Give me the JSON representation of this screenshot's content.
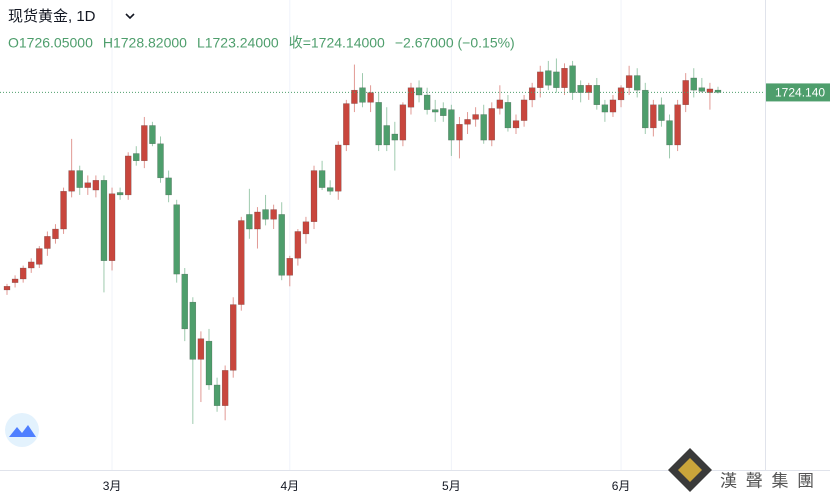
{
  "chart_data": {
    "type": "candlestick",
    "symbol_title": "现货黄金, 1D",
    "ohlc_legend": [
      "O1726.05000",
      "H1728.82000",
      "L1723.24000",
      "收=1724.14000",
      "−2.67000 (−0.15%)"
    ],
    "last_price_label": "1724.140",
    "watermark": "漢 聲 集 團",
    "up_color": "#c8463d",
    "down_color": "#4e9e6c",
    "ylim": [
      1406,
      1800
    ],
    "categories": [
      null,
      null,
      null,
      null,
      null,
      null,
      null,
      null,
      null,
      null,
      null,
      null,
      null,
      "3月",
      null,
      null,
      null,
      null,
      null,
      null,
      null,
      null,
      null,
      null,
      null,
      null,
      null,
      null,
      null,
      null,
      null,
      null,
      null,
      null,
      null,
      "4月",
      null,
      null,
      null,
      null,
      null,
      null,
      null,
      null,
      null,
      null,
      null,
      null,
      null,
      null,
      null,
      null,
      null,
      null,
      null,
      "5月",
      null,
      null,
      null,
      null,
      null,
      null,
      null,
      null,
      null,
      null,
      null,
      null,
      null,
      null,
      null,
      null,
      null,
      null,
      null,
      null,
      "6月",
      null,
      null,
      null,
      null,
      null,
      null,
      null,
      null,
      null,
      null,
      null,
      null
    ],
    "open": [
      1562,
      1568,
      1571,
      1580,
      1583,
      1596,
      1604,
      1612,
      1643,
      1660,
      1646,
      1644,
      1652,
      1586,
      1642,
      1640,
      1674,
      1668,
      1697,
      1682,
      1654,
      1632,
      1575,
      1552,
      1505,
      1520,
      1484,
      1467,
      1496,
      1550,
      1624,
      1612,
      1628,
      1620,
      1624,
      1574,
      1588,
      1608,
      1618,
      1660,
      1646,
      1643,
      1681,
      1715,
      1728,
      1716,
      1716,
      1697,
      1690,
      1685,
      1712,
      1728,
      1722,
      1710,
      1711,
      1710,
      1685,
      1698,
      1702,
      1706,
      1685,
      1711,
      1716,
      1695,
      1701,
      1718,
      1728,
      1742,
      1741,
      1728,
      1746,
      1730,
      1724,
      1730,
      1714,
      1708,
      1718,
      1728,
      1738,
      1726,
      1695,
      1714,
      1701,
      1681,
      1714,
      1736,
      1728,
      1724,
      1726.05
    ],
    "high": [
      1567,
      1574,
      1582,
      1588,
      1598,
      1610,
      1616,
      1646,
      1686,
      1664,
      1656,
      1656,
      1656,
      1646,
      1646,
      1675,
      1680,
      1704,
      1700,
      1688,
      1660,
      1636,
      1580,
      1556,
      1528,
      1530,
      1490,
      1500,
      1556,
      1622,
      1645,
      1630,
      1640,
      1632,
      1634,
      1590,
      1612,
      1622,
      1664,
      1668,
      1652,
      1684,
      1718,
      1747,
      1740,
      1730,
      1724,
      1712,
      1700,
      1716,
      1732,
      1734,
      1728,
      1718,
      1716,
      1714,
      1704,
      1708,
      1712,
      1714,
      1716,
      1730,
      1722,
      1706,
      1722,
      1732,
      1746,
      1750,
      1752,
      1748,
      1750,
      1734,
      1732,
      1736,
      1718,
      1722,
      1730,
      1746,
      1744,
      1732,
      1718,
      1720,
      1706,
      1718,
      1740,
      1744,
      1736,
      1732,
      1728.82
    ],
    "low": [
      1558,
      1564,
      1568,
      1576,
      1580,
      1590,
      1600,
      1608,
      1638,
      1640,
      1640,
      1638,
      1560,
      1578,
      1636,
      1636,
      1664,
      1662,
      1680,
      1650,
      1634,
      1568,
      1520,
      1452,
      1470,
      1480,
      1462,
      1455,
      1490,
      1545,
      1604,
      1596,
      1615,
      1612,
      1570,
      1565,
      1582,
      1600,
      1612,
      1644,
      1640,
      1636,
      1676,
      1708,
      1712,
      1708,
      1676,
      1676,
      1660,
      1680,
      1706,
      1716,
      1706,
      1700,
      1700,
      1672,
      1670,
      1690,
      1696,
      1682,
      1680,
      1706,
      1692,
      1690,
      1696,
      1712,
      1720,
      1726,
      1724,
      1722,
      1718,
      1716,
      1718,
      1710,
      1700,
      1704,
      1712,
      1722,
      1720,
      1690,
      1688,
      1696,
      1670,
      1676,
      1708,
      1720,
      1724,
      1710,
      1723.24
    ],
    "close": [
      1565,
      1571,
      1580,
      1585,
      1596,
      1606,
      1612,
      1643,
      1660,
      1646,
      1650,
      1652,
      1586,
      1641,
      1640,
      1672,
      1668,
      1697,
      1682,
      1654,
      1640,
      1575,
      1530,
      1505,
      1522,
      1484,
      1467,
      1496,
      1550,
      1619,
      1612,
      1626,
      1620,
      1628,
      1574,
      1588,
      1610,
      1618,
      1660,
      1646,
      1643,
      1681,
      1715,
      1726,
      1716,
      1724,
      1681,
      1681,
      1685,
      1714,
      1728,
      1722,
      1710,
      1708,
      1705,
      1685,
      1698,
      1702,
      1706,
      1685,
      1711,
      1718,
      1695,
      1701,
      1718,
      1728,
      1741,
      1730,
      1728,
      1744,
      1724,
      1724,
      1730,
      1714,
      1708,
      1718,
      1728,
      1738,
      1726,
      1695,
      1714,
      1701,
      1681,
      1714,
      1734,
      1726,
      1725,
      1727,
      1724.14
    ]
  }
}
